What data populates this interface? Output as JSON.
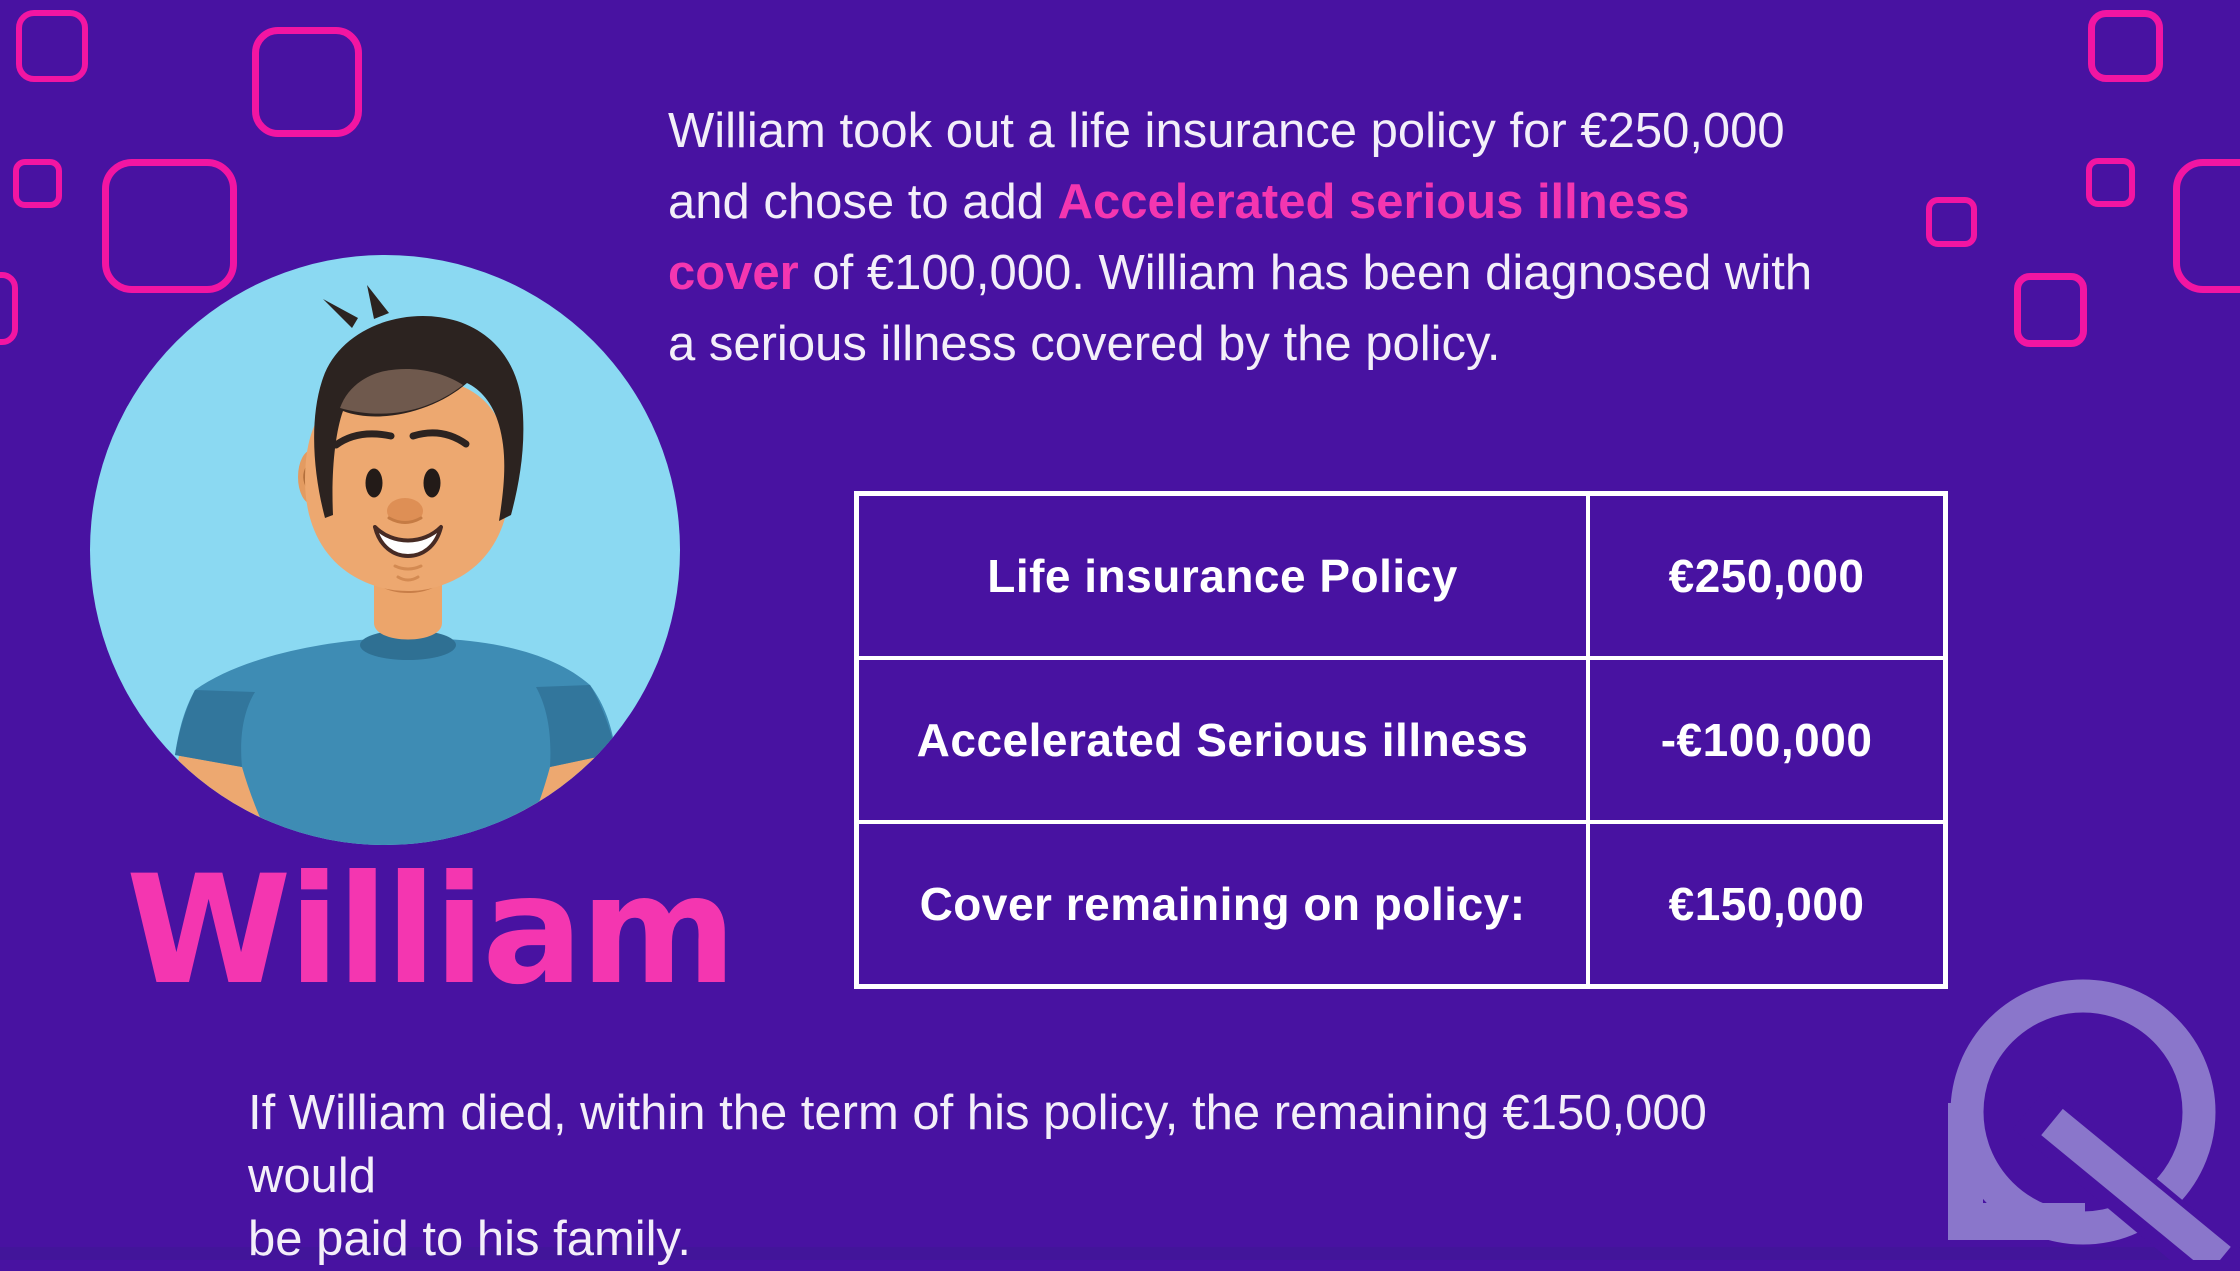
{
  "colors": {
    "background": "#4812A1",
    "background_bottom_strip": "#42159A",
    "pink_text": "#F436B0",
    "pink_outline": "#F215A2",
    "white": "#FFFFFF",
    "avatar_circle_blue": "#8BD9F2",
    "logo_purple": "#8A76CB",
    "table_border": "#FFFFFF"
  },
  "intro": {
    "lines": [
      {
        "segments": [
          {
            "text": "William took out a life insurance policy for €250,000",
            "style": "normal"
          }
        ]
      },
      {
        "segments": [
          {
            "text": "and chose to add ",
            "style": "normal"
          },
          {
            "text": "Accelerated serious illness",
            "style": "highlight"
          }
        ]
      },
      {
        "segments": [
          {
            "text": "cover",
            "style": "highlight"
          },
          {
            "text": " of €100,000. William has been diagnosed with",
            "style": "normal"
          }
        ]
      },
      {
        "segments": [
          {
            "text": "a serious illness covered by the policy.",
            "style": "normal"
          }
        ]
      }
    ]
  },
  "person": {
    "name": "William",
    "avatar": "cartoon-man-dark-hair-blue-shirt-on-light-blue-circle"
  },
  "policy_table": {
    "rows": [
      {
        "label": "Life insurance Policy",
        "value": "€250,000"
      },
      {
        "label": "Accelerated Serious illness",
        "value": "-€100,000"
      },
      {
        "label": "Cover remaining on policy:",
        "value": "€150,000"
      }
    ]
  },
  "footer": {
    "lines": [
      "If William died, within the term of his policy, the remaining €150,000 would",
      "be paid to his family."
    ]
  },
  "logo": {
    "name": "LQ monogram"
  }
}
